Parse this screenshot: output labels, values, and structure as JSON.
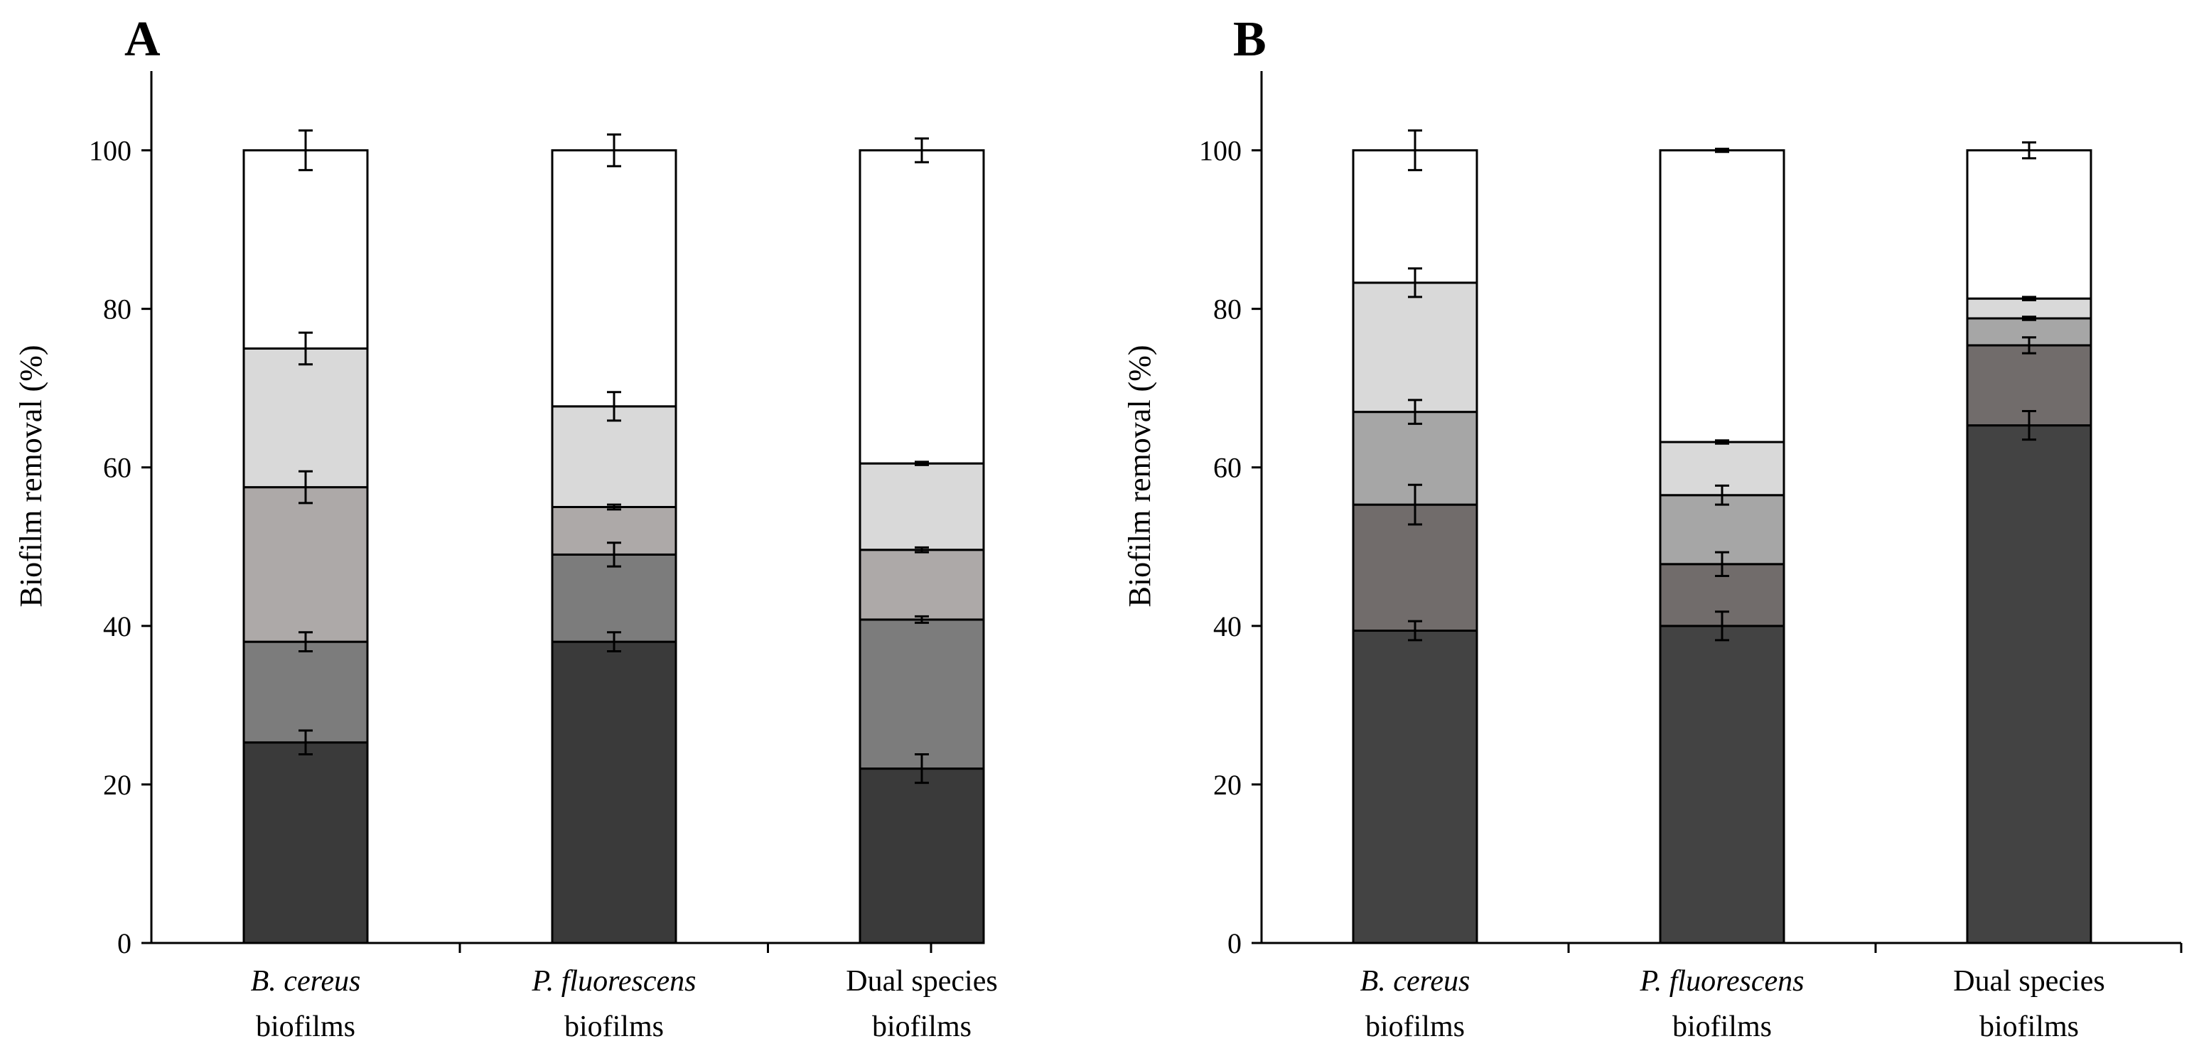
{
  "figure": {
    "segment_colors": [
      "#3a3a3a",
      "#7c7c7c",
      "#ada9a8",
      "#d9d9d9",
      "#ffffff"
    ],
    "panel_b_segment_colors": [
      "#434343",
      "#716c6b",
      "#a6a6a6",
      "#d9d9d9",
      "#ffffff"
    ]
  },
  "chart_data": [
    {
      "type": "bar",
      "stacked": true,
      "panel": "A",
      "ylabel": "Biofilm removal (%)",
      "ylim": [
        0,
        110
      ],
      "yticks": [
        0,
        20,
        40,
        60,
        80,
        100
      ],
      "categories": [
        {
          "line1": "B. cereus",
          "line2": "biofilms",
          "italic": true
        },
        {
          "line1": "P. fluorescens",
          "line2": "biofilms",
          "italic": true
        },
        {
          "line1": "Dual species",
          "line2": "biofilms",
          "italic": false
        }
      ],
      "cumulative_tops": [
        [
          25.3,
          38.0,
          57.5,
          75.0,
          100.0
        ],
        [
          38.0,
          49.0,
          55.0,
          67.7,
          100.0
        ],
        [
          22.0,
          40.8,
          49.6,
          60.5,
          100.0
        ]
      ],
      "errors": [
        [
          1.5,
          1.2,
          2.0,
          2.0,
          2.5
        ],
        [
          1.2,
          1.5,
          0.3,
          1.8,
          2.0
        ],
        [
          1.8,
          0.4,
          0.3,
          0.2,
          1.5
        ]
      ]
    },
    {
      "type": "bar",
      "stacked": true,
      "panel": "B",
      "ylabel": "Biofilm removal (%)",
      "ylim": [
        0,
        110
      ],
      "yticks": [
        0,
        20,
        40,
        60,
        80,
        100
      ],
      "categories": [
        {
          "line1": "B. cereus",
          "line2": "biofilms",
          "italic": true
        },
        {
          "line1": "P. fluorescens",
          "line2": "biofilms",
          "italic": true
        },
        {
          "line1": "Dual species",
          "line2": "biofilms",
          "italic": false
        }
      ],
      "cumulative_tops": [
        [
          39.4,
          55.3,
          67.0,
          83.3,
          100.0
        ],
        [
          40.0,
          47.8,
          56.5,
          63.2,
          100.0
        ],
        [
          65.3,
          75.4,
          78.8,
          81.3,
          100.0
        ]
      ],
      "errors": [
        [
          1.2,
          2.5,
          1.5,
          1.8,
          2.5
        ],
        [
          1.8,
          1.5,
          1.2,
          0.2,
          0.2
        ],
        [
          1.8,
          1.0,
          0.2,
          0.2,
          1.0
        ]
      ]
    }
  ]
}
